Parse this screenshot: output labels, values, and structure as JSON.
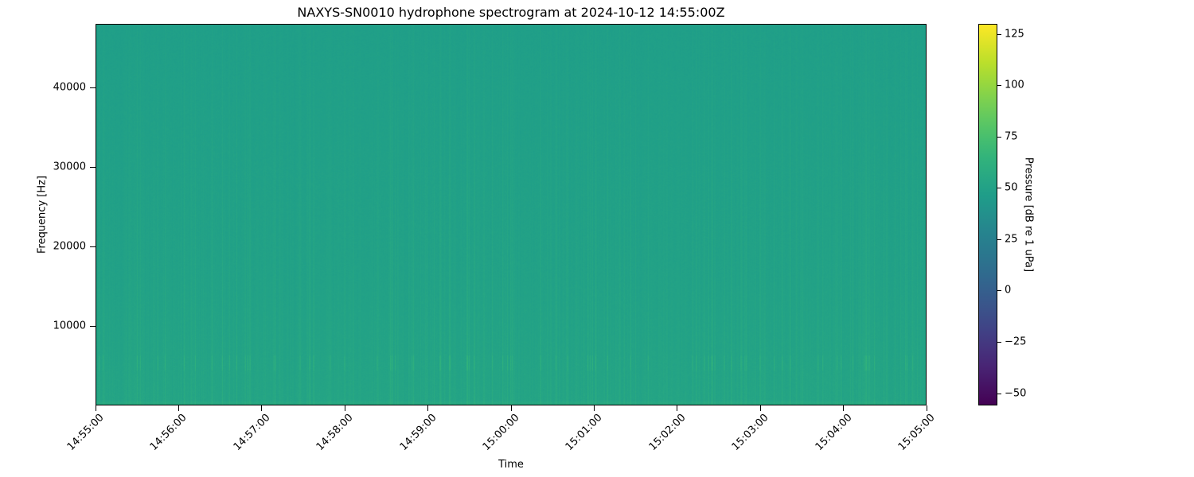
{
  "chart_data": {
    "type": "heatmap",
    "title": "NAXYS-SN0010 hydrophone spectrogram at 2024-10-12 14:55:00Z",
    "xlabel": "Time",
    "ylabel": "Frequency [Hz]",
    "x_range": [
      "14:55:00",
      "15:05:00"
    ],
    "x_ticks": [
      "14:55:00",
      "14:56:00",
      "14:57:00",
      "14:58:00",
      "14:59:00",
      "15:00:00",
      "15:01:00",
      "15:02:00",
      "15:03:00",
      "15:04:00",
      "15:05:00"
    ],
    "ylim": [
      0,
      48000
    ],
    "y_ticks": [
      10000,
      20000,
      30000,
      40000
    ],
    "y_tick_labels": [
      "10000",
      "20000",
      "30000",
      "40000"
    ],
    "colorbar": {
      "label": "Pressure [dB re 1 uPa]",
      "colormap": "viridis",
      "range": [
        -56,
        130
      ],
      "ticks": [
        -50,
        -25,
        0,
        25,
        50,
        75,
        100,
        125
      ],
      "tick_labels": [
        "−50",
        "−25",
        "0",
        "25",
        "50",
        "75",
        "100",
        "125"
      ]
    },
    "typical_level_db": 50,
    "grid": false
  }
}
